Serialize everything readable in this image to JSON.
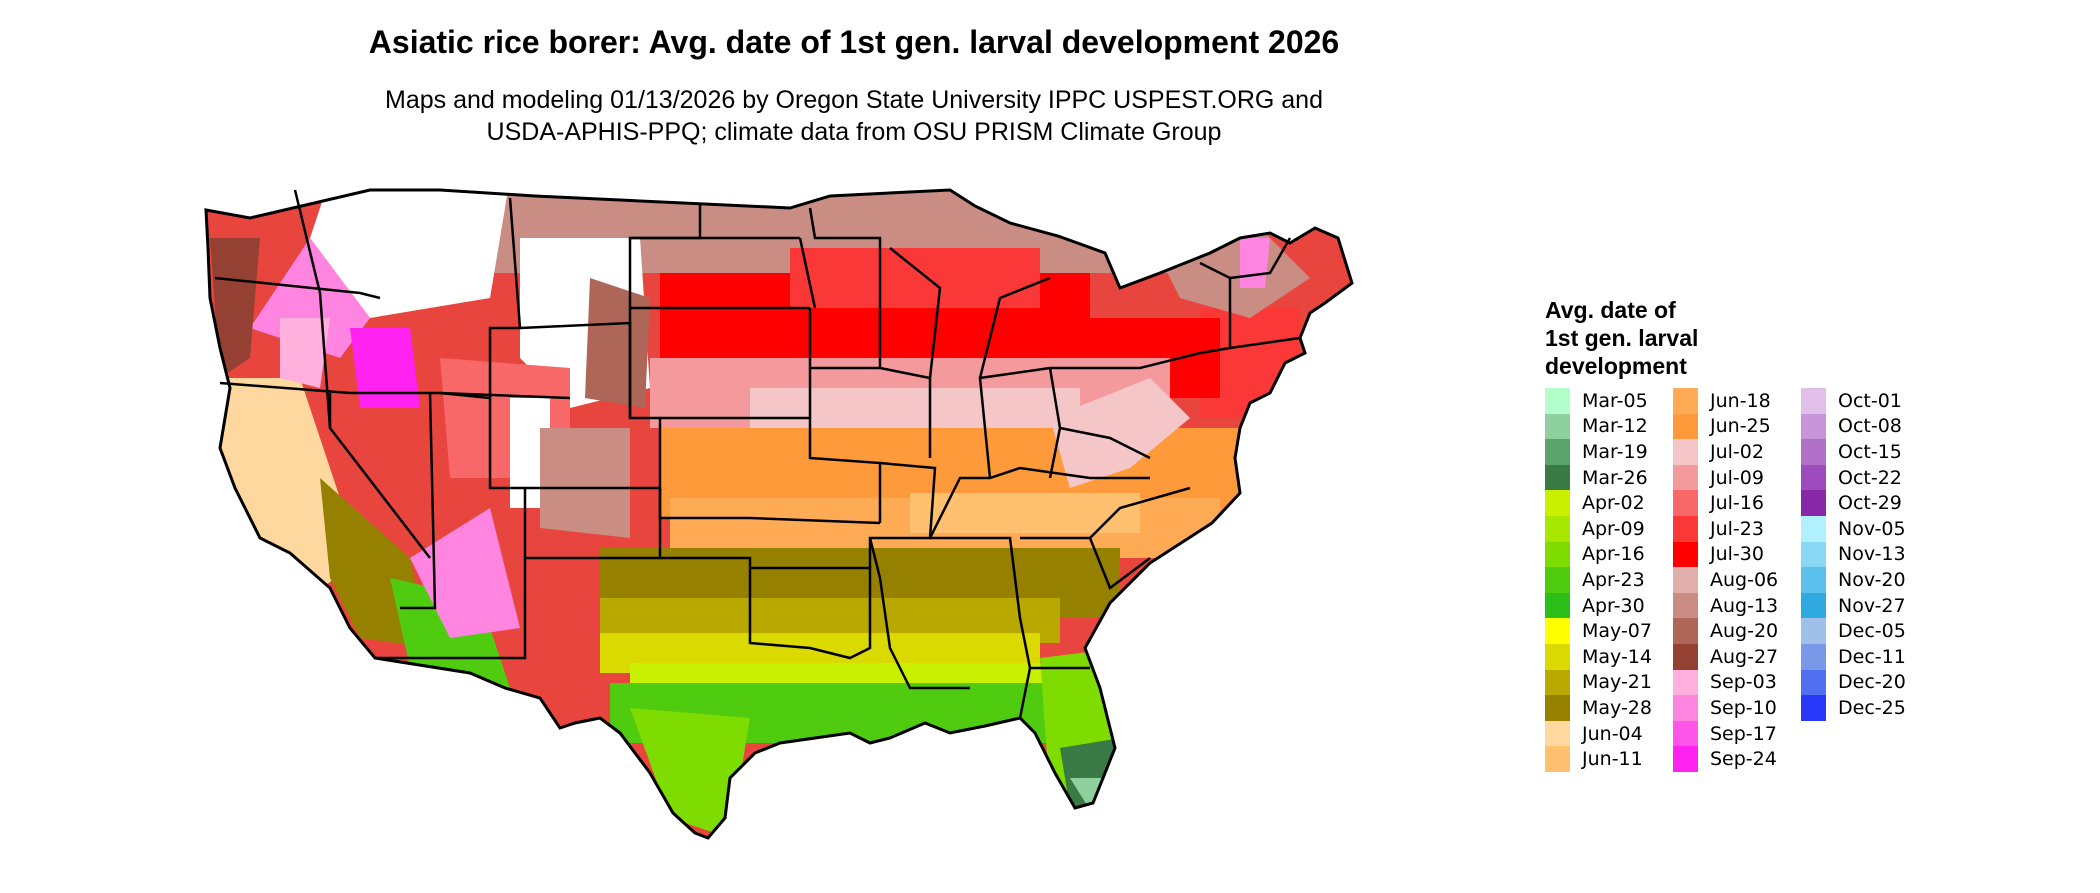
{
  "title": "Asiatic rice borer: Avg. date of 1st gen. larval development 2026",
  "subtitle": "Maps and modeling 01/13/2026 by Oregon State University IPPC USPEST.ORG and\nUSDA-APHIS-PPQ; climate data from OSU PRISM Climate Group",
  "legend": {
    "title": "Avg. date of\n1st gen. larval\ndevelopment",
    "columns": [
      [
        {
          "label": "Mar-05",
          "color": "#b3ffcc"
        },
        {
          "label": "Mar-12",
          "color": "#8fd19e"
        },
        {
          "label": "Mar-19",
          "color": "#5aa46a"
        },
        {
          "label": "Mar-26",
          "color": "#3a7a45"
        },
        {
          "label": "Apr-02",
          "color": "#c8f000"
        },
        {
          "label": "Apr-09",
          "color": "#a8e800"
        },
        {
          "label": "Apr-16",
          "color": "#7fdc00"
        },
        {
          "label": "Apr-23",
          "color": "#4fcc10"
        },
        {
          "label": "Apr-30",
          "color": "#2bbf1a"
        },
        {
          "label": "May-07",
          "color": "#ffff00"
        },
        {
          "label": "May-14",
          "color": "#dada00"
        },
        {
          "label": "May-21",
          "color": "#b8a800"
        },
        {
          "label": "May-28",
          "color": "#958000"
        },
        {
          "label": "Jun-04",
          "color": "#ffd8a0"
        },
        {
          "label": "Jun-11",
          "color": "#ffc070"
        }
      ],
      [
        {
          "label": "Jun-18",
          "color": "#ffaa55"
        },
        {
          "label": "Jun-25",
          "color": "#ff9a3a"
        },
        {
          "label": "Jul-02",
          "color": "#f4c6c8"
        },
        {
          "label": "Jul-09",
          "color": "#f59a9c"
        },
        {
          "label": "Jul-16",
          "color": "#f86868"
        },
        {
          "label": "Jul-23",
          "color": "#fb3838"
        },
        {
          "label": "Jul-30",
          "color": "#ff0000"
        },
        {
          "label": "Aug-06",
          "color": "#e2b0ac"
        },
        {
          "label": "Aug-13",
          "color": "#c98d84"
        },
        {
          "label": "Aug-20",
          "color": "#ae6658"
        },
        {
          "label": "Aug-27",
          "color": "#944032"
        },
        {
          "label": "Sep-03",
          "color": "#ffb0dd"
        },
        {
          "label": "Sep-10",
          "color": "#ff85e0"
        },
        {
          "label": "Sep-17",
          "color": "#ff55e8"
        },
        {
          "label": "Sep-24",
          "color": "#ff22f0"
        }
      ],
      [
        {
          "label": "Oct-01",
          "color": "#e0c0e8"
        },
        {
          "label": "Oct-08",
          "color": "#c896d8"
        },
        {
          "label": "Oct-15",
          "color": "#b070c8"
        },
        {
          "label": "Oct-22",
          "color": "#9c4cbc"
        },
        {
          "label": "Oct-29",
          "color": "#8828a8"
        },
        {
          "label": "Nov-05",
          "color": "#b0f0ff"
        },
        {
          "label": "Nov-13",
          "color": "#88d8f4"
        },
        {
          "label": "Nov-20",
          "color": "#5cc0ec"
        },
        {
          "label": "Nov-27",
          "color": "#30a8e0"
        },
        {
          "label": "Dec-05",
          "color": "#a0c0e8"
        },
        {
          "label": "Dec-11",
          "color": "#7898e8"
        },
        {
          "label": "Dec-20",
          "color": "#5070f0"
        },
        {
          "label": "Dec-25",
          "color": "#2838f8"
        }
      ]
    ]
  }
}
